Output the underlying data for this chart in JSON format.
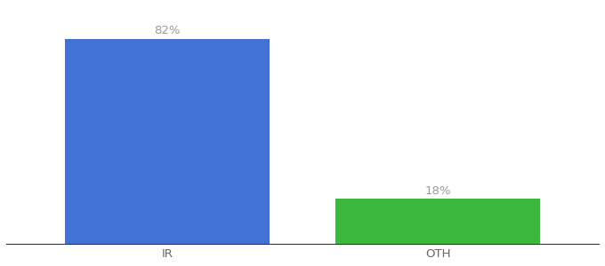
{
  "categories": [
    "IR",
    "OTH"
  ],
  "values": [
    82,
    18
  ],
  "bar_colors": [
    "#4472d4",
    "#3cb83c"
  ],
  "labels": [
    "82%",
    "18%"
  ],
  "background_color": "#ffffff",
  "ylim": [
    0,
    95
  ],
  "bar_width": 0.28,
  "x_positions": [
    0.25,
    0.62
  ],
  "xlim": [
    0.03,
    0.84
  ],
  "label_fontsize": 9.5,
  "tick_fontsize": 9.5,
  "label_color": "#999999",
  "tick_color": "#666666",
  "spine_color": "#333333"
}
